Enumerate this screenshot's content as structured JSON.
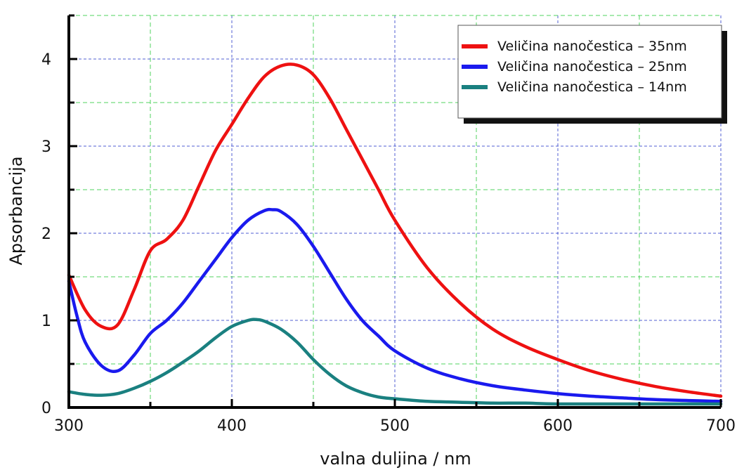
{
  "chart_data": {
    "type": "line",
    "xlabel": "valna duljina / nm",
    "ylabel": "Apsorbancija",
    "xlim": [
      300,
      700
    ],
    "ylim": [
      0,
      4.5
    ],
    "x_ticks": [
      "300",
      "400",
      "500",
      "600",
      "700"
    ],
    "y_ticks": [
      "0",
      "1",
      "2",
      "3",
      "4"
    ],
    "grid": true,
    "legend_position": "top-right",
    "colors": {
      "red": "#ee1111",
      "blue": "#1a1aee",
      "teal": "#1a8080",
      "grid_major": "#3344cc",
      "grid_minor": "#33cc44"
    },
    "series": [
      {
        "name": "Veličina nanočestica – 35nm",
        "color": "#ee1111",
        "x": [
          300,
          310,
          320,
          330,
          340,
          350,
          360,
          370,
          380,
          390,
          400,
          410,
          420,
          430,
          440,
          450,
          460,
          470,
          480,
          490,
          500,
          520,
          540,
          560,
          580,
          600,
          620,
          640,
          660,
          680,
          700
        ],
        "y": [
          1.52,
          1.12,
          0.93,
          0.95,
          1.35,
          1.8,
          1.93,
          2.15,
          2.55,
          2.95,
          3.25,
          3.55,
          3.8,
          3.92,
          3.93,
          3.82,
          3.55,
          3.2,
          2.85,
          2.5,
          2.15,
          1.6,
          1.2,
          0.9,
          0.7,
          0.55,
          0.42,
          0.32,
          0.24,
          0.18,
          0.13
        ]
      },
      {
        "name": "Veličina nanočestica – 25nm",
        "color": "#1a1aee",
        "x": [
          300,
          305,
          310,
          320,
          330,
          340,
          350,
          360,
          370,
          380,
          390,
          400,
          410,
          420,
          425,
          430,
          440,
          450,
          460,
          470,
          480,
          490,
          500,
          520,
          540,
          560,
          580,
          600,
          620,
          640,
          660,
          680,
          700
        ],
        "y": [
          1.45,
          1.05,
          0.75,
          0.48,
          0.42,
          0.6,
          0.85,
          1.0,
          1.2,
          1.45,
          1.7,
          1.95,
          2.15,
          2.26,
          2.27,
          2.25,
          2.1,
          1.85,
          1.55,
          1.25,
          1.0,
          0.82,
          0.65,
          0.45,
          0.33,
          0.25,
          0.2,
          0.16,
          0.13,
          0.11,
          0.09,
          0.08,
          0.07
        ]
      },
      {
        "name": "Veličina nanočestica – 14nm",
        "color": "#1a8080",
        "x": [
          300,
          310,
          320,
          330,
          340,
          350,
          360,
          370,
          380,
          390,
          400,
          410,
          415,
          420,
          430,
          440,
          450,
          460,
          470,
          480,
          490,
          500,
          520,
          540,
          560,
          580,
          600,
          650,
          700
        ],
        "y": [
          0.18,
          0.15,
          0.14,
          0.16,
          0.22,
          0.3,
          0.4,
          0.52,
          0.65,
          0.8,
          0.93,
          1.0,
          1.01,
          0.99,
          0.9,
          0.75,
          0.55,
          0.38,
          0.25,
          0.17,
          0.12,
          0.1,
          0.07,
          0.06,
          0.05,
          0.05,
          0.04,
          0.04,
          0.04
        ]
      }
    ]
  }
}
